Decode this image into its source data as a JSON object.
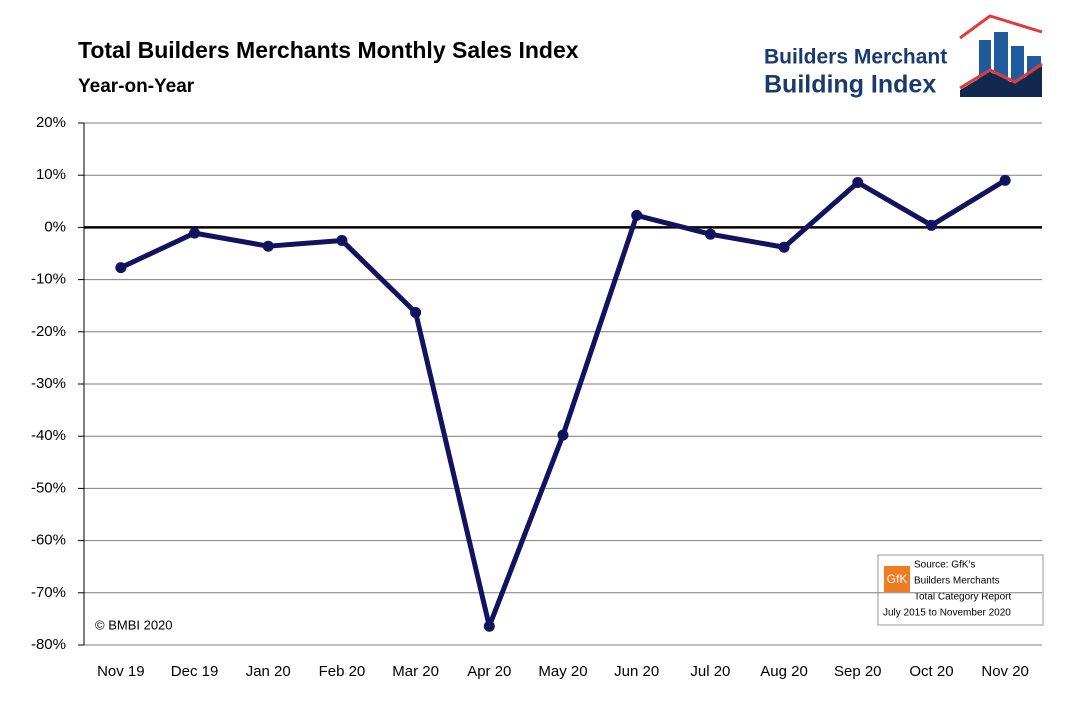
{
  "chart_data": {
    "type": "line",
    "title": "Total Builders Merchants Monthly Sales Index",
    "subtitle": "Year-on-Year",
    "categories": [
      "Nov 19",
      "Dec 19",
      "Jan 20",
      "Feb 20",
      "Mar 20",
      "Apr 20",
      "May 20",
      "Jun 20",
      "Jul 20",
      "Aug 20",
      "Sep 20",
      "Oct 20",
      "Nov 20"
    ],
    "values": [
      -7.7,
      -1.1,
      -3.6,
      -2.5,
      -16.3,
      -76.4,
      -39.8,
      2.3,
      -1.3,
      -3.8,
      8.6,
      0.4,
      9.0
    ],
    "color": "#12125e",
    "ylim": [
      -80,
      20
    ],
    "yticks": [
      {
        "value": -80,
        "label": "-80%"
      },
      {
        "value": -70,
        "label": "-70%"
      },
      {
        "value": -60,
        "label": "-60%"
      },
      {
        "value": -50,
        "label": "-50%"
      },
      {
        "value": -40,
        "label": "-40%"
      },
      {
        "value": -30,
        "label": "-30%"
      },
      {
        "value": -20,
        "label": "-20%"
      },
      {
        "value": -10,
        "label": "-10%"
      },
      {
        "value": 0,
        "label": "0%"
      },
      {
        "value": 10,
        "label": "10%"
      },
      {
        "value": 20,
        "label": "20%"
      }
    ],
    "grid": true,
    "copyright": "© BMBI 2020"
  },
  "logo": {
    "line1": "Builders Merchant",
    "line2": "Building Index"
  },
  "source_box": {
    "brand": "GfK",
    "lines": [
      "Source: GfK's",
      "Builders Merchants",
      "Total Category Report",
      "July 2015 to November 2020"
    ]
  }
}
